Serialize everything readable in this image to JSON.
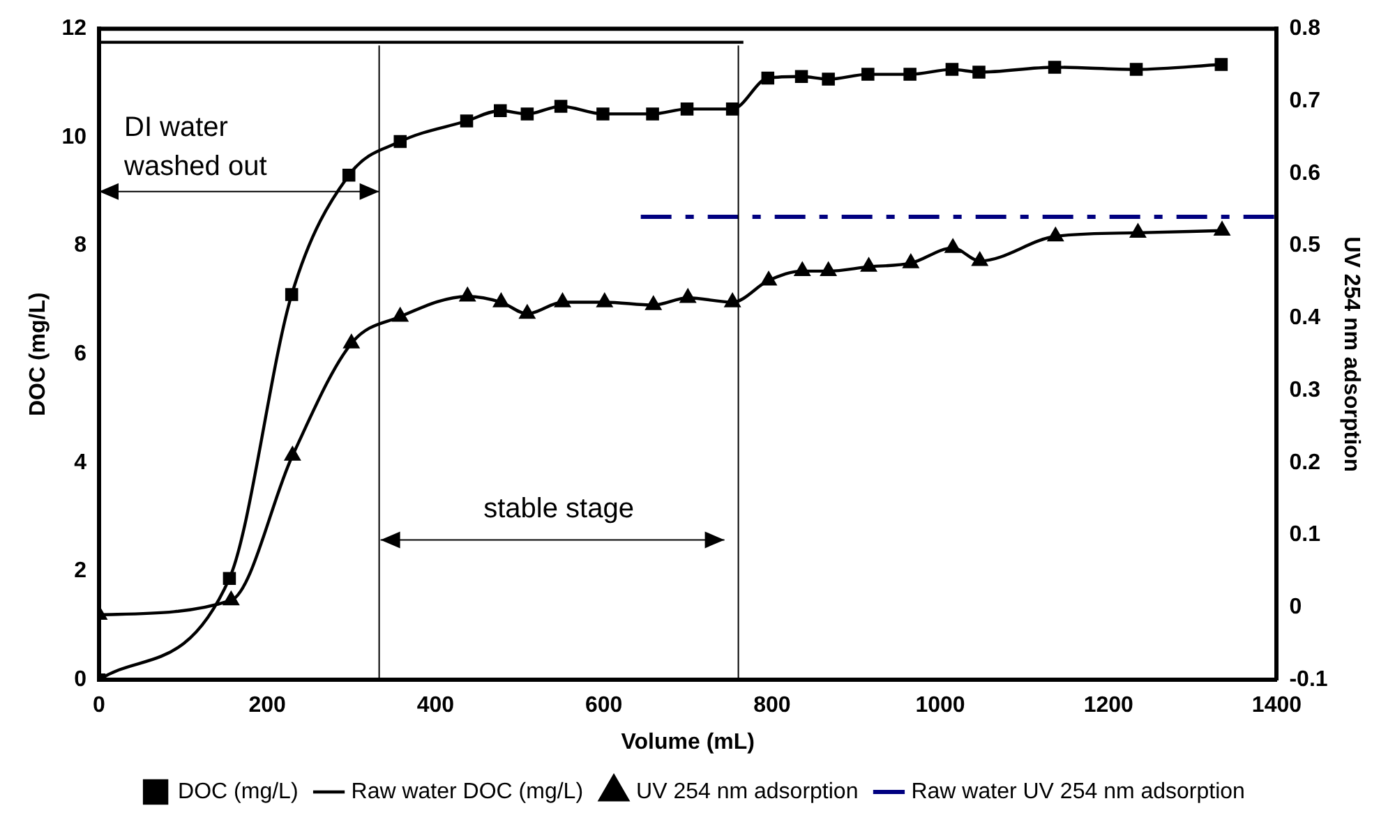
{
  "chart_data": {
    "type": "line",
    "xlabel": "Volume (mL)",
    "ylabel": "DOC (mg/L)",
    "y2label": "UV 254 nm adsorption",
    "xlim": [
      0,
      1400
    ],
    "xticks": [
      0,
      200,
      400,
      600,
      800,
      1000,
      1200,
      1400
    ],
    "ylim": [
      0,
      12
    ],
    "yticks": [
      0,
      2,
      4,
      6,
      8,
      10,
      12
    ],
    "y2lim": [
      -0.1,
      0.8
    ],
    "y2ticks": [
      -0.1,
      0,
      0.1,
      0.2,
      0.3,
      0.4,
      0.5,
      0.6,
      0.7,
      0.8
    ],
    "grid": false,
    "legend": "bottom",
    "series": [
      {
        "name": "DOC (mg/L)",
        "color": "#000000",
        "marker": "square",
        "x": [
          0,
          155,
          229,
          297,
          358,
          437,
          477,
          509,
          549,
          599,
          658,
          699,
          753,
          795,
          835,
          867,
          914,
          964,
          1014,
          1046,
          1136,
          1233,
          1334
        ],
        "values": [
          0,
          1.87,
          7.1,
          9.3,
          9.92,
          10.3,
          10.49,
          10.43,
          10.57,
          10.43,
          10.43,
          10.52,
          10.52,
          11.09,
          11.12,
          11.07,
          11.16,
          11.16,
          11.25,
          11.2,
          11.29,
          11.25,
          11.34
        ]
      },
      {
        "name": "Raw water DOC (mg/L)",
        "color": "#000000",
        "marker": "none",
        "x": [
          0,
          766
        ],
        "values": [
          11.75,
          11.75
        ]
      },
      {
        "name": "UV 254 nm adsorption",
        "color": "#000000",
        "marker": "triangle",
        "axis": "y2",
        "x": [
          0,
          157,
          230,
          300,
          358,
          438,
          478,
          509,
          551,
          601,
          659,
          700,
          753,
          796,
          836,
          867,
          915,
          965,
          1015,
          1047,
          1137,
          1235,
          1335
        ],
        "values": [
          -0.01,
          0.01,
          0.21,
          0.365,
          0.402,
          0.43,
          0.422,
          0.406,
          0.422,
          0.422,
          0.418,
          0.428,
          0.422,
          0.452,
          0.465,
          0.465,
          0.471,
          0.476,
          0.497,
          0.479,
          0.513,
          0.518,
          0.521
        ]
      },
      {
        "name": "Raw water UV 254 nm adsorption",
        "color": "#000080",
        "marker": "none",
        "line_style": "dashed",
        "axis": "y2",
        "x": [
          644,
          1400
        ],
        "values": [
          0.54,
          0.54
        ]
      }
    ],
    "ref_lines": [
      {
        "axis": "x",
        "value": 333,
        "color": "#000000"
      },
      {
        "axis": "x",
        "value": 760,
        "color": "#000000"
      }
    ],
    "annotations": [
      "DI water washed out",
      "stable stage"
    ]
  }
}
